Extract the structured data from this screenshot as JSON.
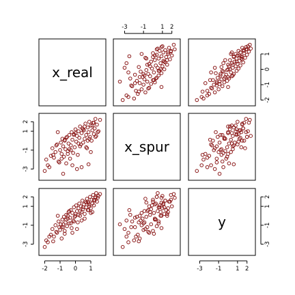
{
  "chart_data": {
    "type": "scatter",
    "kind": "pairs-matrix",
    "variables": [
      "x_real",
      "x_spur",
      "y"
    ],
    "point_color": "#8b1a1a",
    "marker": "open-circle",
    "axis_ticks": {
      "x_real": [
        -2,
        -1,
        0,
        1
      ],
      "x_spur": [
        -3,
        -1,
        1,
        2
      ],
      "y": [
        -3,
        -1,
        1,
        2
      ]
    },
    "axis_tick_labels": {
      "x_real": [
        "-2",
        "-1",
        "0",
        "1"
      ],
      "x_spur": [
        "-3",
        "-1",
        "1",
        "2"
      ],
      "y": [
        "-3",
        "-1",
        "1",
        "2"
      ]
    },
    "axis_range": {
      "x_real": [
        -2.2,
        1.8
      ],
      "x_spur": [
        -3.9,
        2.6
      ],
      "y": [
        -3.9,
        2.6
      ]
    },
    "tick_placement": {
      "top": [
        "x_spur"
      ],
      "bottom": [
        "x_real",
        "y"
      ],
      "left": [
        "x_spur",
        "y"
      ],
      "right": [
        "x_real",
        "y"
      ]
    },
    "observations": {
      "x_real": [
        -2.0,
        -1.9,
        -1.8,
        -1.6,
        -1.5,
        -1.4,
        -1.3,
        -1.2,
        -1.1,
        -1.0,
        -0.95,
        -0.9,
        -0.85,
        -0.8,
        -0.75,
        -0.7,
        -0.65,
        -0.6,
        -0.55,
        -0.5,
        -0.45,
        -0.4,
        -0.35,
        -0.3,
        -0.25,
        -0.2,
        -0.15,
        -0.1,
        -0.05,
        0.0,
        0.05,
        0.1,
        0.15,
        0.2,
        0.25,
        0.3,
        0.35,
        0.4,
        0.45,
        0.5,
        0.55,
        0.6,
        0.65,
        0.7,
        0.75,
        0.8,
        0.85,
        0.9,
        0.95,
        1.0,
        1.05,
        1.1,
        1.15,
        1.2,
        1.25,
        1.3,
        1.35,
        1.4,
        1.5,
        1.6,
        -1.7,
        -1.25,
        -0.9,
        -0.6,
        -0.3,
        0.0,
        0.3,
        0.6,
        0.9,
        1.2,
        -1.45,
        -1.05,
        -0.7,
        -0.4,
        -0.1,
        0.2,
        0.5,
        0.8,
        1.1,
        1.45,
        -0.8,
        -0.2,
        0.4,
        1.0,
        0.1,
        0.7,
        -0.5,
        1.3,
        -1.15,
        0.85
      ],
      "x_spur": [
        -3.2,
        -2.0,
        -2.6,
        -1.6,
        -0.8,
        -1.8,
        -1.2,
        -0.4,
        -2.2,
        -1.0,
        -0.2,
        -1.4,
        0.2,
        -0.6,
        -1.7,
        0.0,
        -0.9,
        -2.4,
        0.4,
        -1.1,
        -0.3,
        0.6,
        -1.9,
        -0.5,
        0.9,
        0.1,
        -1.3,
        0.7,
        -0.7,
        1.2,
        -0.1,
        0.5,
        -1.5,
        1.0,
        0.3,
        1.5,
        -0.4,
        0.8,
        1.3,
        -0.2,
        1.1,
        0.2,
        1.8,
        0.6,
        -0.8,
        1.4,
        0.9,
        2.0,
        0.4,
        1.6,
        0.0,
        1.1,
        1.9,
        0.7,
        1.3,
        2.3,
        0.5,
        1.7,
        1.0,
        2.2,
        -2.8,
        -0.5,
        -1.9,
        0.3,
        -1.0,
        0.8,
        -0.6,
        1.5,
        0.2,
        1.9,
        -1.5,
        -2.3,
        0.1,
        -0.9,
        0.6,
        -0.3,
        1.2,
        0.0,
        1.6,
        0.9,
        -3.5,
        -2.6,
        -2.8,
        -1.2,
        -3.0,
        -0.7,
        -1.4,
        0.4,
        0.9,
        -2.5
      ],
      "y": [
        -3.3,
        -2.6,
        -2.8,
        -2.0,
        -1.4,
        -2.2,
        -1.0,
        -1.8,
        -0.6,
        -1.5,
        -0.9,
        -2.4,
        -0.4,
        -1.2,
        -0.1,
        -1.6,
        -0.7,
        0.1,
        -1.1,
        -0.3,
        0.4,
        -0.8,
        -0.2,
        0.6,
        -1.3,
        0.3,
        -0.5,
        0.9,
        -0.1,
        0.2,
        1.1,
        0.5,
        -0.7,
        0.8,
        1.3,
        0.0,
        1.0,
        0.4,
        1.6,
        0.7,
        1.2,
        -0.3,
        1.5,
        0.9,
        1.8,
        0.6,
        1.4,
        1.0,
        2.0,
        0.8,
        1.7,
        1.3,
        2.2,
        1.1,
        1.6,
        1.9,
        2.4,
        1.5,
        2.1,
        2.3,
        -2.2,
        -1.7,
        -1.2,
        -0.4,
        -0.8,
        0.0,
        0.5,
        0.2,
        1.2,
        1.7,
        -2.7,
        -1.2,
        -1.9,
        0.5,
        -0.6,
        0.1,
        0.9,
        1.5,
        0.4,
        1.9,
        -0.9,
        -1.8,
        -0.5,
        0.3,
        -1.4,
        1.4,
        0.0,
        2.0,
        0.0,
        0.6
      ]
    }
  }
}
